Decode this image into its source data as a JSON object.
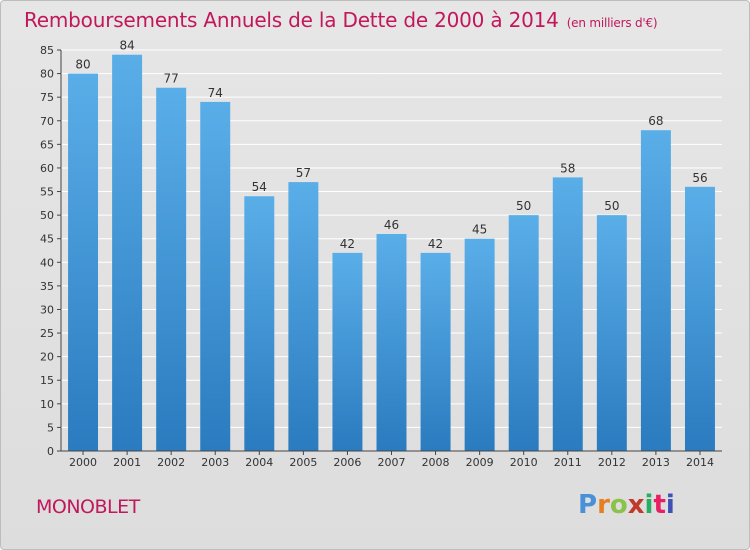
{
  "title": "Remboursements Annuels de la Dette de 2000 à 2014",
  "unit": "(en milliers d'€)",
  "place": "MONOBLET",
  "logo": "Proxiti",
  "colors": {
    "bar_top": "#5aaee8",
    "bar_bottom": "#2a7bbf",
    "title": "#c2185b",
    "axis": "#444444",
    "grid": "#ffffff"
  },
  "chart_data": {
    "type": "bar",
    "categories": [
      "2000",
      "2001",
      "2002",
      "2003",
      "2004",
      "2005",
      "2006",
      "2007",
      "2008",
      "2009",
      "2010",
      "2011",
      "2012",
      "2013",
      "2014"
    ],
    "values": [
      80,
      84,
      77,
      74,
      54,
      57,
      42,
      46,
      42,
      45,
      50,
      58,
      50,
      68,
      56
    ],
    "ylim": [
      0,
      85
    ],
    "yticks": [
      0,
      5,
      10,
      15,
      20,
      25,
      30,
      35,
      40,
      45,
      50,
      55,
      60,
      65,
      70,
      75,
      80,
      85
    ],
    "grid": true,
    "data_labels": true
  }
}
